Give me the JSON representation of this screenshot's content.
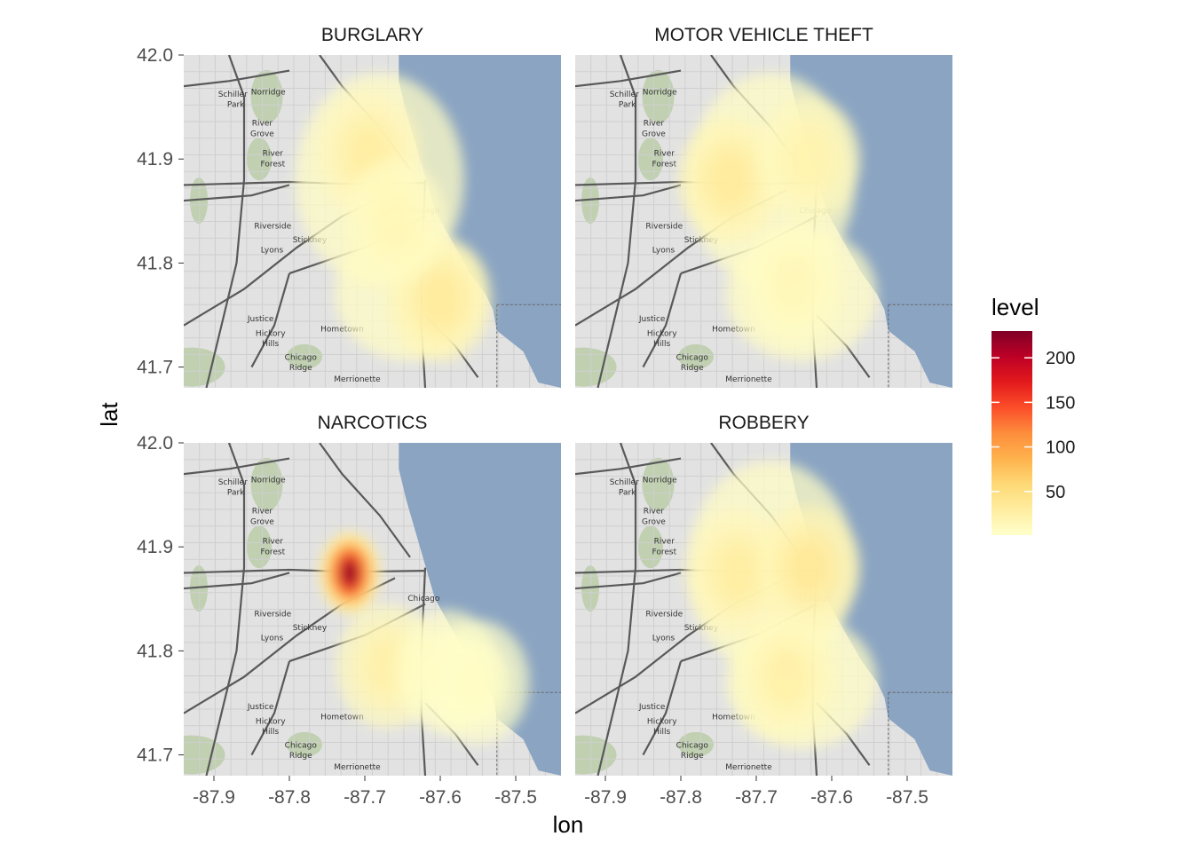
{
  "chart_data": {
    "type": "heatmap",
    "subtype": "density-contour-over-map",
    "facets": [
      "BURGLARY",
      "MOTOR VEHICLE THEFT",
      "NARCOTICS",
      "ROBBERY"
    ],
    "xlabel": "lon",
    "ylabel": "lat",
    "xlim": [
      -87.94,
      -87.44
    ],
    "ylim": [
      41.68,
      42.0
    ],
    "x_ticks": [
      "-87.9",
      "-87.8",
      "-87.7",
      "-87.6",
      "-87.5"
    ],
    "x_tick_values": [
      -87.9,
      -87.8,
      -87.7,
      -87.6,
      -87.5
    ],
    "y_ticks": [
      "41.7",
      "41.8",
      "41.9",
      "42.0"
    ],
    "y_tick_values": [
      41.7,
      41.8,
      41.9,
      42.0
    ],
    "legend": {
      "title": "level",
      "placement": "right",
      "range": [
        1,
        230
      ],
      "ticks": [
        "50",
        "100",
        "150",
        "200"
      ],
      "tick_values": [
        50,
        100,
        150,
        200
      ],
      "colors": [
        "#ffffcc",
        "#ffeda0",
        "#fed976",
        "#feb24c",
        "#fd8d3c",
        "#fc4e2a",
        "#e31a1c",
        "#bd0026",
        "#800026"
      ]
    },
    "hotspots": {
      "BURGLARY": [
        {
          "lon": -87.695,
          "lat": 41.905,
          "level": 30
        },
        {
          "lon": -87.6,
          "lat": 41.765,
          "level": 35
        },
        {
          "lon": -87.66,
          "lat": 41.84,
          "level": 15
        }
      ],
      "MOTOR VEHICLE THEFT": [
        {
          "lon": -87.735,
          "lat": 41.88,
          "level": 35
        },
        {
          "lon": -87.63,
          "lat": 41.9,
          "level": 22
        },
        {
          "lon": -87.65,
          "lat": 41.78,
          "level": 14
        }
      ],
      "NARCOTICS": [
        {
          "lon": -87.72,
          "lat": 41.875,
          "level": 230
        },
        {
          "lon": -87.67,
          "lat": 41.785,
          "level": 25
        },
        {
          "lon": -87.59,
          "lat": 41.78,
          "level": 8
        },
        {
          "lon": -87.55,
          "lat": 41.77,
          "level": 6
        }
      ],
      "ROBBERY": [
        {
          "lon": -87.725,
          "lat": 41.875,
          "level": 30
        },
        {
          "lon": -87.63,
          "lat": 41.88,
          "level": 38
        },
        {
          "lon": -87.66,
          "lat": 41.775,
          "level": 25
        }
      ]
    }
  },
  "colors": {
    "water": "#8aa4c2",
    "land": "#e2e2e2",
    "road": "#595959",
    "park": "#b4c9a0"
  },
  "map_labels": [
    {
      "text": "Schiller",
      "lon": -87.875,
      "lat": 41.96
    },
    {
      "text": "Park",
      "lon": -87.871,
      "lat": 41.95
    },
    {
      "text": "Norridge",
      "lon": -87.828,
      "lat": 41.962
    },
    {
      "text": "River",
      "lon": -87.836,
      "lat": 41.932
    },
    {
      "text": "Grove",
      "lon": -87.836,
      "lat": 41.922
    },
    {
      "text": "River",
      "lon": -87.822,
      "lat": 41.903
    },
    {
      "text": "Forest",
      "lon": -87.822,
      "lat": 41.893
    },
    {
      "text": "Chicago",
      "lon": -87.622,
      "lat": 41.848
    },
    {
      "text": "Riverside",
      "lon": -87.822,
      "lat": 41.833
    },
    {
      "text": "Stickney",
      "lon": -87.773,
      "lat": 41.82
    },
    {
      "text": "Lyons",
      "lon": -87.823,
      "lat": 41.81
    },
    {
      "text": "Justice",
      "lon": -87.838,
      "lat": 41.744
    },
    {
      "text": "Hickory",
      "lon": -87.825,
      "lat": 41.73
    },
    {
      "text": "Hills",
      "lon": -87.825,
      "lat": 41.72
    },
    {
      "text": "Hometown",
      "lon": -87.73,
      "lat": 41.734
    },
    {
      "text": "Chicago",
      "lon": -87.785,
      "lat": 41.707
    },
    {
      "text": "Ridge",
      "lon": -87.785,
      "lat": 41.697
    },
    {
      "text": "Merrionette",
      "lon": -87.71,
      "lat": 41.686
    }
  ]
}
